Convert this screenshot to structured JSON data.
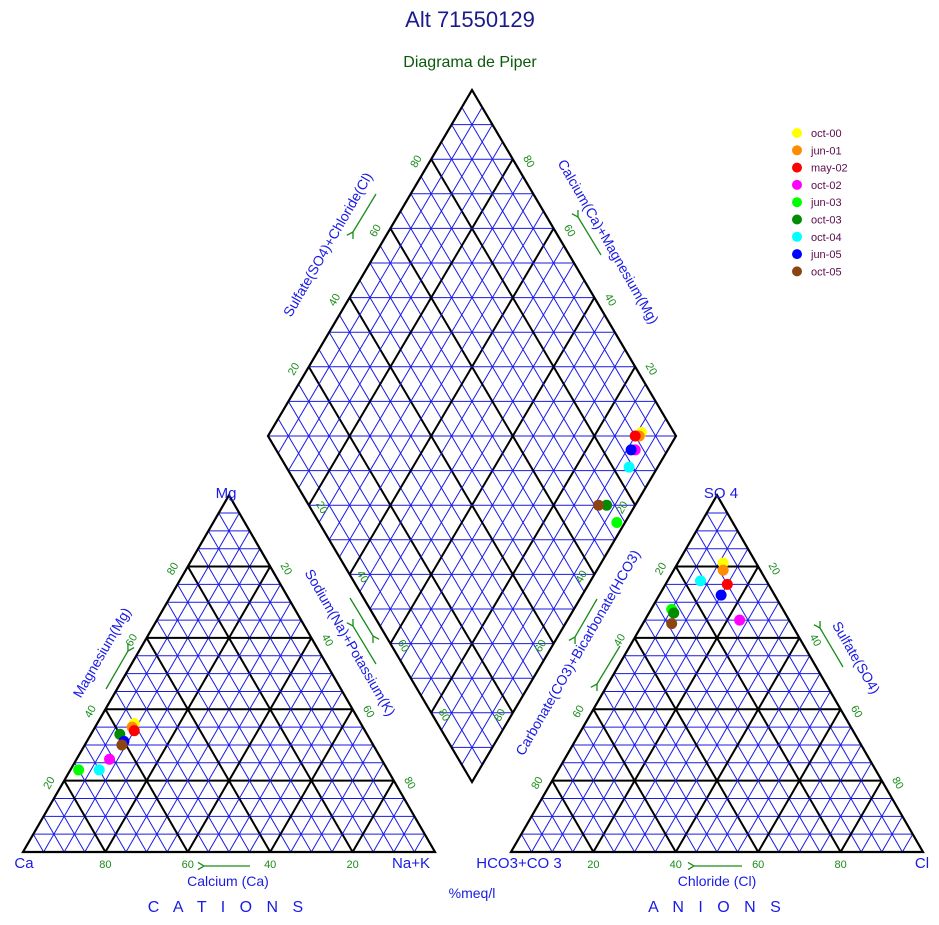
{
  "chart_data": {
    "type": "scatter",
    "diagram": "piper",
    "title": "Alt 71550129",
    "subtitle": "Diagrama de Piper",
    "units_label": "%meq/l",
    "cations": {
      "caption": "C A T I O N S",
      "corners": {
        "left": "Ca",
        "top": "Mg",
        "right": "Na+K"
      },
      "bottom_axis_label": "Calcium (Ca)",
      "left_axis_label": "Magnesium(Mg)",
      "right_axis_label": "Sodium(Na)+Potassium(K)",
      "bottom_ticks": [
        "80",
        "60",
        "40",
        "20"
      ],
      "left_ticks": [
        "20",
        "40",
        "60",
        "80"
      ],
      "right_ticks": [
        "20",
        "40",
        "60",
        "80"
      ]
    },
    "anions": {
      "caption": "A N I O N S",
      "corners": {
        "left": "HCO3+CO 3",
        "top": "SO 4",
        "right": "Cl"
      },
      "bottom_axis_label": "Chloride (Cl)",
      "left_axis_label": "Carbonate(CO3)+Bicarbonate(HCO3)",
      "right_axis_label": "Sulfate(SO4)",
      "bottom_ticks": [
        "20",
        "40",
        "60",
        "80"
      ],
      "left_ticks": [
        "80",
        "60",
        "40",
        "20"
      ],
      "right_ticks": [
        "20",
        "40",
        "60",
        "80"
      ]
    },
    "diamond": {
      "upper_left_label": "Sulfate(SO4)+Chloride(Cl)",
      "upper_right_label": "Calcium(Ca)+Magnesium(Mg)",
      "upper_left_ticks": [
        "20",
        "40",
        "60",
        "80"
      ],
      "upper_right_ticks": [
        "80",
        "60",
        "40",
        "20"
      ],
      "lower_left_ticks": [
        "20",
        "40",
        "60",
        "80"
      ],
      "lower_right_ticks": [
        "20",
        "40",
        "60",
        "80"
      ]
    },
    "series": [
      {
        "name": "oct-00",
        "color": "#ffff00",
        "Ca": 55,
        "Mg": 36,
        "Cl": 11,
        "SO4": 81
      },
      {
        "name": "jun-01",
        "color": "#ff8c00",
        "Ca": 56,
        "Mg": 35,
        "Cl": 12,
        "SO4": 79
      },
      {
        "name": "may-02",
        "color": "#ff0000",
        "Ca": 56,
        "Mg": 34,
        "Cl": 15,
        "SO4": 75
      },
      {
        "name": "oct-02",
        "color": "#ff00ff",
        "Ca": 66,
        "Mg": 26,
        "Cl": 23,
        "SO4": 65
      },
      {
        "name": "jun-03",
        "color": "#00ff00",
        "Ca": 75,
        "Mg": 23,
        "Cl": 5,
        "SO4": 68
      },
      {
        "name": "oct-03",
        "color": "#008c00",
        "Ca": 60,
        "Mg": 33,
        "Cl": 6,
        "SO4": 67
      },
      {
        "name": "oct-04",
        "color": "#00ffff",
        "Ca": 70,
        "Mg": 23,
        "Cl": 8,
        "SO4": 76
      },
      {
        "name": "jun-05",
        "color": "#0000ff",
        "Ca": 60,
        "Mg": 31,
        "Cl": 15,
        "SO4": 72
      },
      {
        "name": "oct-05",
        "color": "#8b4513",
        "Ca": 61,
        "Mg": 30,
        "Cl": 7,
        "SO4": 64
      }
    ]
  }
}
